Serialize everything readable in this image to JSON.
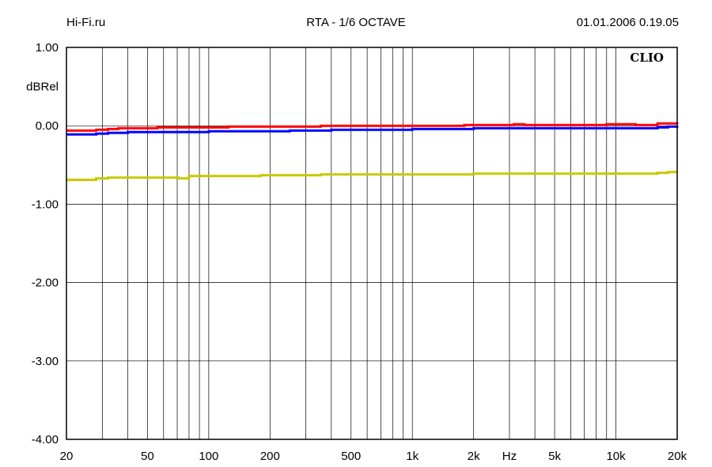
{
  "header": {
    "left": "Hi-Fi.ru",
    "center": "RTA - 1/6 OCTAVE",
    "right": "01.01.2006 0.19.05"
  },
  "chart_data": {
    "type": "line",
    "title": "RTA - 1/6 OCTAVE",
    "ylabel": "dBRel",
    "xlabel": "Hz",
    "logo": "CLIO",
    "x_scale": "log",
    "xlim": [
      20,
      20000
    ],
    "ylim": [
      -4.0,
      1.0
    ],
    "grid": true,
    "y_ticks": [
      {
        "value": 1.0,
        "label": "1.00"
      },
      {
        "value": 0.0,
        "label": "0.00"
      },
      {
        "value": -1.0,
        "label": "-1.00"
      },
      {
        "value": -2.0,
        "label": "-2.00"
      },
      {
        "value": -3.0,
        "label": "-3.00"
      },
      {
        "value": -4.0,
        "label": "-4.00"
      }
    ],
    "x_ticks": [
      {
        "value": 20,
        "label": "20"
      },
      {
        "value": 50,
        "label": "50"
      },
      {
        "value": 100,
        "label": "100"
      },
      {
        "value": 200,
        "label": "200"
      },
      {
        "value": 500,
        "label": "500"
      },
      {
        "value": 1000,
        "label": "1k"
      },
      {
        "value": 2000,
        "label": "2k"
      },
      {
        "value": 5000,
        "label": "5k"
      },
      {
        "value": 10000,
        "label": "10k"
      },
      {
        "value": 20000,
        "label": "20k"
      }
    ],
    "x_minor_grid": [
      30,
      40,
      60,
      70,
      80,
      90,
      300,
      400,
      600,
      700,
      800,
      900,
      3000,
      4000,
      6000,
      7000,
      8000,
      9000
    ],
    "series": [
      {
        "color": "#ff0000",
        "x": [
          20,
          25,
          28,
          32,
          36,
          45,
          56,
          63,
          90,
          125,
          180,
          250,
          355,
          400,
          500,
          710,
          1000,
          1250,
          1800,
          2000,
          2800,
          3150,
          3550,
          4500,
          5600,
          6300,
          9000,
          12500,
          14000,
          16000,
          18000,
          20000
        ],
        "y": [
          -0.06,
          -0.06,
          -0.05,
          -0.04,
          -0.03,
          -0.03,
          -0.02,
          -0.02,
          -0.02,
          -0.01,
          -0.01,
          -0.01,
          0.0,
          0.0,
          0.0,
          0.0,
          0.0,
          0.0,
          0.01,
          0.01,
          0.01,
          0.02,
          0.01,
          0.01,
          0.01,
          0.01,
          0.02,
          0.01,
          0.01,
          0.03,
          0.03,
          0.02
        ]
      },
      {
        "color": "#0000ff",
        "x": [
          20,
          25,
          28,
          32,
          40,
          56,
          90,
          100,
          180,
          250,
          355,
          400,
          700,
          1000,
          1800,
          2000,
          3550,
          5600,
          9000,
          14000,
          16000,
          18000,
          20000
        ],
        "y": [
          -0.11,
          -0.11,
          -0.1,
          -0.09,
          -0.08,
          -0.08,
          -0.08,
          -0.07,
          -0.07,
          -0.06,
          -0.06,
          -0.05,
          -0.05,
          -0.04,
          -0.04,
          -0.03,
          -0.03,
          -0.03,
          -0.03,
          -0.03,
          -0.02,
          -0.01,
          0.0
        ]
      },
      {
        "color": "#c8c800",
        "x": [
          20,
          25,
          28,
          32,
          40,
          63,
          71,
          80,
          125,
          180,
          250,
          355,
          400,
          1000,
          2000,
          4000,
          9000,
          14000,
          16000,
          18000,
          20000
        ],
        "y": [
          -0.69,
          -0.69,
          -0.67,
          -0.66,
          -0.66,
          -0.66,
          -0.67,
          -0.64,
          -0.64,
          -0.63,
          -0.63,
          -0.62,
          -0.62,
          -0.62,
          -0.61,
          -0.61,
          -0.61,
          -0.61,
          -0.6,
          -0.59,
          -0.59
        ]
      }
    ]
  }
}
